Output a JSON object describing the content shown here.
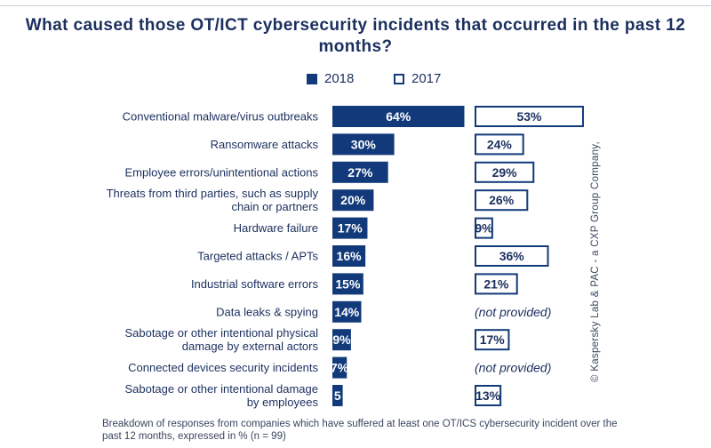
{
  "title": "What caused those OT/ICT cybersecurity incidents that occurred in the past 12 months?",
  "legend": {
    "series_2018": "2018",
    "series_2017": "2017"
  },
  "colors": {
    "bar_2018": "#123a7a",
    "bar_2017_border": "#123a7a",
    "text": "#1b2f5e"
  },
  "footnote": "Breakdown of responses from companies which have suffered at least one OT/ICS cybersecurity incident over the past 12 months, expressed in % (n = 99)",
  "credit": "© Kaspersky Lab & PAC - a CXP Group Company,",
  "chart_data": {
    "type": "bar",
    "orientation": "horizontal",
    "title": "What caused those OT/ICT cybersecurity incidents that occurred in the past 12 months?",
    "categories": [
      "Conventional malware/virus outbreaks",
      "Ransomware attacks",
      "Employee errors/unintentional actions",
      "Threats from third parties, such as supply chain or partners",
      "Hardware failure",
      "Targeted attacks / APTs",
      "Industrial software errors",
      "Data leaks & spying",
      "Sabotage or other intentional physical damage by external actors",
      "Connected devices security incidents",
      "Sabotage or other intentional damage by employees"
    ],
    "category_lines": [
      [
        "Conventional malware/virus outbreaks"
      ],
      [
        "Ransomware attacks"
      ],
      [
        "Employee errors/unintentional actions"
      ],
      [
        "Threats from third parties, such as supply",
        "chain or partners"
      ],
      [
        "Hardware failure"
      ],
      [
        "Targeted attacks / APTs"
      ],
      [
        "Industrial software errors"
      ],
      [
        "Data leaks & spying"
      ],
      [
        "Sabotage or other intentional physical",
        "damage by external actors"
      ],
      [
        "Connected devices security incidents"
      ],
      [
        "Sabotage or other intentional damage",
        "by employees"
      ]
    ],
    "series": [
      {
        "name": "2018",
        "values": [
          64,
          30,
          27,
          20,
          17,
          16,
          15,
          14,
          9,
          7,
          5
        ],
        "labels": [
          "64%",
          "30%",
          "27%",
          "20%",
          "17%",
          "16%",
          "15%",
          "14%",
          "9%",
          "7%",
          "5"
        ]
      },
      {
        "name": "2017",
        "values": [
          53,
          24,
          29,
          26,
          9,
          36,
          21,
          null,
          17,
          null,
          13
        ],
        "labels": [
          "53%",
          "24%",
          "29%",
          "26%",
          "9%",
          "36%",
          "21%",
          "(not provided)",
          "17%",
          "(not provided)",
          "13%"
        ]
      }
    ],
    "units": "%"
  }
}
